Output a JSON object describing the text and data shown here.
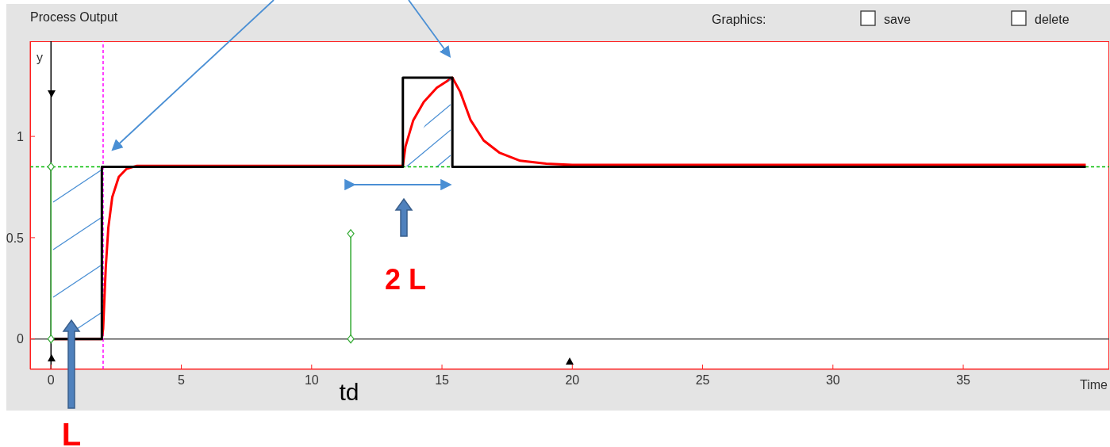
{
  "chart_data": {
    "type": "line",
    "title": "Process Output",
    "ylabel": "y",
    "xlabel": "Time",
    "xlim": [
      -0.8,
      40.6
    ],
    "ylim": [
      -0.15,
      1.47
    ],
    "xticks": [
      0,
      5,
      10,
      15,
      20,
      25,
      30,
      35
    ],
    "yticks": [
      0,
      0.5,
      1
    ],
    "line_style": "solid",
    "series": [
      {
        "color": "#ff0000",
        "x": [
          0,
          1.95,
          2.0,
          2.1,
          2.2,
          2.35,
          2.6,
          2.9,
          3.3,
          13.5,
          13.6,
          13.9,
          14.3,
          14.8,
          15.4,
          15.7,
          16.1,
          16.6,
          17.2,
          18,
          19,
          20,
          39.7
        ],
        "values": [
          0,
          0,
          0.05,
          0.35,
          0.55,
          0.7,
          0.8,
          0.84,
          0.855,
          0.855,
          0.95,
          1.08,
          1.17,
          1.24,
          1.29,
          1.22,
          1.08,
          0.98,
          0.92,
          0.88,
          0.865,
          0.86,
          0.86
        ]
      },
      {
        "color": "#000000",
        "x": [
          0,
          1.95,
          1.95,
          13.5,
          13.5,
          15.4,
          15.4,
          39.7
        ],
        "values": [
          0,
          0,
          0.85,
          0.85,
          1.29,
          1.29,
          0.85,
          0.85
        ]
      },
      {
        "color": "#33aa33",
        "marker": "diamond",
        "x": [
          0,
          0
        ],
        "values": [
          0,
          0.85
        ]
      },
      {
        "color": "#33aa33",
        "marker": "diamond",
        "x": [
          11.5,
          11.5
        ],
        "values": [
          0,
          0.52
        ]
      }
    ],
    "ref_lines": [
      {
        "axis": "y",
        "value": 0,
        "color": "#555555",
        "line_style": "solid"
      },
      {
        "axis": "x",
        "value": 0,
        "color": "#000000",
        "line_style": "solid"
      },
      {
        "axis": "x",
        "value": 2,
        "color": "#ff00ff",
        "line_style": "dashed"
      },
      {
        "axis": "y",
        "value": 0.85,
        "color": "#00bb00",
        "line_style": "dashed"
      }
    ],
    "annotations": [
      "Graphics:",
      "save",
      "delete",
      "L",
      "2 L",
      "td"
    ]
  }
}
